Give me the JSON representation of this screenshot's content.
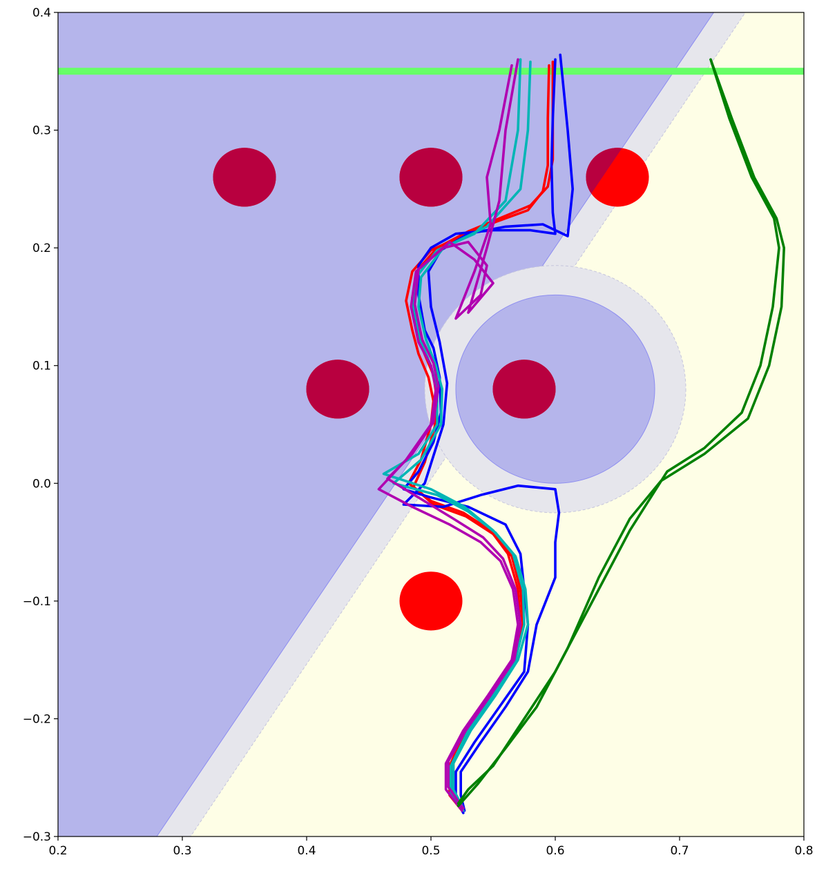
{
  "chart_data": {
    "type": "line",
    "title": "",
    "xlabel": "",
    "ylabel": "",
    "xlim": [
      0.2,
      0.8
    ],
    "ylim": [
      -0.3,
      0.4
    ],
    "grid": false,
    "x_ticks": [
      {
        "value": 0.2,
        "label": "0.2"
      },
      {
        "value": 0.3,
        "label": "0.3"
      },
      {
        "value": 0.4,
        "label": "0.4"
      },
      {
        "value": 0.5,
        "label": "0.5"
      },
      {
        "value": 0.6,
        "label": "0.6"
      },
      {
        "value": 0.7,
        "label": "0.7"
      },
      {
        "value": 0.8,
        "label": "0.8"
      }
    ],
    "y_ticks": [
      {
        "value": -0.3,
        "label": "−0.3"
      },
      {
        "value": -0.2,
        "label": "−0.2"
      },
      {
        "value": -0.1,
        "label": "−0.1"
      },
      {
        "value": 0.0,
        "label": "0.0"
      },
      {
        "value": 0.1,
        "label": "0.1"
      },
      {
        "value": 0.2,
        "label": "0.2"
      },
      {
        "value": 0.3,
        "label": "0.3"
      },
      {
        "value": 0.4,
        "label": "0.4"
      }
    ],
    "colors": {
      "background": "#fefee6",
      "unsafe_region": "#b5b5eb",
      "margin_band": "#e6e6ec",
      "goal_line": "#66ff66",
      "obstacle": "#ff0000",
      "obstacle_in_unsafe": "#b8003f"
    },
    "regions": {
      "half_plane_boundary": [
        [
          0.2794,
          -0.3
        ],
        [
          0.7275,
          0.4
        ]
      ],
      "margin_boundary": [
        [
          0.3066,
          -0.3
        ],
        [
          0.7529,
          0.4
        ]
      ],
      "disc": {
        "center": [
          0.6,
          0.08
        ],
        "radius": 0.08,
        "margin_radius": 0.105
      }
    },
    "goal_line_y": 0.35,
    "obstacles": [
      {
        "center": [
          0.35,
          0.26
        ],
        "rx": 0.0253,
        "ry": 0.025
      },
      {
        "center": [
          0.5,
          0.26
        ],
        "rx": 0.0253,
        "ry": 0.025
      },
      {
        "center": [
          0.65,
          0.26
        ],
        "rx": 0.0253,
        "ry": 0.025
      },
      {
        "center": [
          0.425,
          0.08
        ],
        "rx": 0.0253,
        "ry": 0.025
      },
      {
        "center": [
          0.575,
          0.08
        ],
        "rx": 0.0253,
        "ry": 0.025
      },
      {
        "center": [
          0.5,
          -0.1
        ],
        "rx": 0.0253,
        "ry": 0.025
      }
    ],
    "series": [
      {
        "color": "#ff0000",
        "points": [
          [
            0.525,
            -0.278
          ],
          [
            0.515,
            -0.265
          ],
          [
            0.515,
            -0.24
          ],
          [
            0.528,
            -0.21
          ],
          [
            0.548,
            -0.18
          ],
          [
            0.566,
            -0.15
          ],
          [
            0.572,
            -0.12
          ],
          [
            0.57,
            -0.09
          ],
          [
            0.562,
            -0.06
          ],
          [
            0.548,
            -0.04
          ],
          [
            0.526,
            -0.025
          ],
          [
            0.5,
            -0.015
          ],
          [
            0.482,
            0.0
          ],
          [
            0.492,
            0.02
          ],
          [
            0.5,
            0.05
          ],
          [
            0.502,
            0.07
          ],
          [
            0.498,
            0.09
          ],
          [
            0.49,
            0.11
          ],
          [
            0.485,
            0.13
          ],
          [
            0.48,
            0.155
          ],
          [
            0.485,
            0.18
          ],
          [
            0.5,
            0.198
          ],
          [
            0.525,
            0.21
          ],
          [
            0.552,
            0.222
          ],
          [
            0.578,
            0.232
          ],
          [
            0.59,
            0.248
          ],
          [
            0.594,
            0.27
          ],
          [
            0.594,
            0.31
          ],
          [
            0.595,
            0.355
          ]
        ]
      },
      {
        "color": "#ff0000",
        "points": [
          [
            0.526,
            -0.276
          ],
          [
            0.518,
            -0.262
          ],
          [
            0.518,
            -0.238
          ],
          [
            0.53,
            -0.21
          ],
          [
            0.55,
            -0.18
          ],
          [
            0.568,
            -0.15
          ],
          [
            0.574,
            -0.12
          ],
          [
            0.572,
            -0.09
          ],
          [
            0.565,
            -0.062
          ],
          [
            0.55,
            -0.043
          ],
          [
            0.528,
            -0.028
          ],
          [
            0.502,
            -0.018
          ],
          [
            0.486,
            -0.003
          ],
          [
            0.495,
            0.018
          ],
          [
            0.503,
            0.048
          ],
          [
            0.505,
            0.07
          ],
          [
            0.502,
            0.092
          ],
          [
            0.494,
            0.112
          ],
          [
            0.488,
            0.132
          ],
          [
            0.485,
            0.158
          ],
          [
            0.49,
            0.182
          ],
          [
            0.505,
            0.2
          ],
          [
            0.53,
            0.214
          ],
          [
            0.555,
            0.225
          ],
          [
            0.58,
            0.236
          ],
          [
            0.594,
            0.252
          ],
          [
            0.598,
            0.275
          ],
          [
            0.598,
            0.315
          ],
          [
            0.598,
            0.358
          ]
        ]
      },
      {
        "color": "#0000ff",
        "points": [
          [
            0.526,
            -0.28
          ],
          [
            0.52,
            -0.268
          ],
          [
            0.52,
            -0.245
          ],
          [
            0.535,
            -0.22
          ],
          [
            0.555,
            -0.19
          ],
          [
            0.575,
            -0.16
          ],
          [
            0.578,
            -0.12
          ],
          [
            0.575,
            -0.09
          ],
          [
            0.572,
            -0.06
          ],
          [
            0.56,
            -0.035
          ],
          [
            0.53,
            -0.02
          ],
          [
            0.5,
            -0.012
          ],
          [
            0.478,
            -0.005
          ],
          [
            0.49,
            0.01
          ],
          [
            0.502,
            0.035
          ],
          [
            0.508,
            0.06
          ],
          [
            0.507,
            0.09
          ],
          [
            0.502,
            0.115
          ],
          [
            0.495,
            0.13
          ],
          [
            0.49,
            0.16
          ],
          [
            0.49,
            0.185
          ],
          [
            0.5,
            0.2
          ],
          [
            0.52,
            0.212
          ],
          [
            0.55,
            0.215
          ],
          [
            0.58,
            0.215
          ],
          [
            0.6,
            0.212
          ],
          [
            0.598,
            0.23
          ],
          [
            0.597,
            0.27
          ],
          [
            0.598,
            0.31
          ],
          [
            0.6,
            0.36
          ]
        ]
      },
      {
        "color": "#0000ff",
        "points": [
          [
            0.527,
            -0.278
          ],
          [
            0.524,
            -0.265
          ],
          [
            0.524,
            -0.245
          ],
          [
            0.54,
            -0.22
          ],
          [
            0.56,
            -0.19
          ],
          [
            0.578,
            -0.16
          ],
          [
            0.585,
            -0.12
          ],
          [
            0.6,
            -0.08
          ],
          [
            0.6,
            -0.05
          ],
          [
            0.603,
            -0.025
          ],
          [
            0.6,
            -0.005
          ],
          [
            0.57,
            -0.002
          ],
          [
            0.54,
            -0.01
          ],
          [
            0.51,
            -0.02
          ],
          [
            0.478,
            -0.018
          ],
          [
            0.495,
            0.0
          ],
          [
            0.51,
            0.05
          ],
          [
            0.513,
            0.085
          ],
          [
            0.507,
            0.12
          ],
          [
            0.5,
            0.15
          ],
          [
            0.498,
            0.18
          ],
          [
            0.508,
            0.198
          ],
          [
            0.53,
            0.212
          ],
          [
            0.56,
            0.218
          ],
          [
            0.59,
            0.22
          ],
          [
            0.61,
            0.21
          ],
          [
            0.614,
            0.25
          ],
          [
            0.61,
            0.3
          ],
          [
            0.604,
            0.364
          ]
        ]
      },
      {
        "color": "#00b5b5",
        "points": [
          [
            0.526,
            -0.278
          ],
          [
            0.516,
            -0.262
          ],
          [
            0.516,
            -0.24
          ],
          [
            0.53,
            -0.21
          ],
          [
            0.55,
            -0.18
          ],
          [
            0.568,
            -0.15
          ],
          [
            0.575,
            -0.12
          ],
          [
            0.574,
            -0.09
          ],
          [
            0.566,
            -0.06
          ],
          [
            0.55,
            -0.04
          ],
          [
            0.527,
            -0.02
          ],
          [
            0.5,
            -0.005
          ],
          [
            0.462,
            0.008
          ],
          [
            0.49,
            0.025
          ],
          [
            0.505,
            0.05
          ],
          [
            0.505,
            0.08
          ],
          [
            0.5,
            0.1
          ],
          [
            0.492,
            0.12
          ],
          [
            0.486,
            0.15
          ],
          [
            0.488,
            0.175
          ],
          [
            0.505,
            0.198
          ],
          [
            0.535,
            0.212
          ],
          [
            0.56,
            0.24
          ],
          [
            0.57,
            0.3
          ],
          [
            0.572,
            0.36
          ]
        ]
      },
      {
        "color": "#00b5b5",
        "points": [
          [
            0.526,
            -0.276
          ],
          [
            0.518,
            -0.26
          ],
          [
            0.518,
            -0.238
          ],
          [
            0.532,
            -0.21
          ],
          [
            0.552,
            -0.18
          ],
          [
            0.57,
            -0.15
          ],
          [
            0.578,
            -0.12
          ],
          [
            0.576,
            -0.09
          ],
          [
            0.568,
            -0.062
          ],
          [
            0.552,
            -0.042
          ],
          [
            0.53,
            -0.024
          ],
          [
            0.505,
            -0.01
          ],
          [
            0.47,
            0.0
          ],
          [
            0.492,
            0.02
          ],
          [
            0.508,
            0.05
          ],
          [
            0.509,
            0.08
          ],
          [
            0.504,
            0.1
          ],
          [
            0.496,
            0.122
          ],
          [
            0.49,
            0.15
          ],
          [
            0.492,
            0.175
          ],
          [
            0.51,
            0.2
          ],
          [
            0.545,
            0.218
          ],
          [
            0.572,
            0.25
          ],
          [
            0.578,
            0.3
          ],
          [
            0.58,
            0.358
          ]
        ]
      },
      {
        "color": "#b000b0",
        "points": [
          [
            0.525,
            -0.278
          ],
          [
            0.512,
            -0.26
          ],
          [
            0.512,
            -0.238
          ],
          [
            0.526,
            -0.21
          ],
          [
            0.546,
            -0.18
          ],
          [
            0.565,
            -0.15
          ],
          [
            0.57,
            -0.12
          ],
          [
            0.566,
            -0.09
          ],
          [
            0.556,
            -0.066
          ],
          [
            0.54,
            -0.05
          ],
          [
            0.515,
            -0.035
          ],
          [
            0.485,
            -0.02
          ],
          [
            0.458,
            -0.005
          ],
          [
            0.48,
            0.02
          ],
          [
            0.5,
            0.05
          ],
          [
            0.504,
            0.08
          ],
          [
            0.5,
            0.1
          ],
          [
            0.49,
            0.12
          ],
          [
            0.484,
            0.15
          ],
          [
            0.488,
            0.18
          ],
          [
            0.51,
            0.2
          ],
          [
            0.53,
            0.205
          ],
          [
            0.545,
            0.185
          ],
          [
            0.54,
            0.16
          ],
          [
            0.52,
            0.14
          ],
          [
            0.535,
            0.18
          ],
          [
            0.548,
            0.22
          ],
          [
            0.545,
            0.26
          ],
          [
            0.555,
            0.3
          ],
          [
            0.565,
            0.355
          ]
        ]
      },
      {
        "color": "#b000b0",
        "points": [
          [
            0.526,
            -0.276
          ],
          [
            0.514,
            -0.258
          ],
          [
            0.514,
            -0.236
          ],
          [
            0.528,
            -0.21
          ],
          [
            0.548,
            -0.18
          ],
          [
            0.567,
            -0.15
          ],
          [
            0.572,
            -0.12
          ],
          [
            0.568,
            -0.09
          ],
          [
            0.558,
            -0.064
          ],
          [
            0.542,
            -0.046
          ],
          [
            0.518,
            -0.03
          ],
          [
            0.49,
            -0.012
          ],
          [
            0.465,
            0.004
          ],
          [
            0.485,
            0.025
          ],
          [
            0.502,
            0.052
          ],
          [
            0.506,
            0.082
          ],
          [
            0.502,
            0.102
          ],
          [
            0.493,
            0.122
          ],
          [
            0.487,
            0.152
          ],
          [
            0.49,
            0.182
          ],
          [
            0.515,
            0.205
          ],
          [
            0.535,
            0.19
          ],
          [
            0.55,
            0.17
          ],
          [
            0.53,
            0.145
          ],
          [
            0.545,
            0.2
          ],
          [
            0.555,
            0.24
          ],
          [
            0.56,
            0.3
          ],
          [
            0.57,
            0.36
          ]
        ]
      },
      {
        "color": "#008000",
        "points": [
          [
            0.522,
            -0.272
          ],
          [
            0.53,
            -0.26
          ],
          [
            0.55,
            -0.24
          ],
          [
            0.575,
            -0.2
          ],
          [
            0.6,
            -0.16
          ],
          [
            0.63,
            -0.1
          ],
          [
            0.66,
            -0.04
          ],
          [
            0.69,
            0.01
          ],
          [
            0.72,
            0.03
          ],
          [
            0.75,
            0.06
          ],
          [
            0.765,
            0.1
          ],
          [
            0.775,
            0.15
          ],
          [
            0.78,
            0.2
          ],
          [
            0.776,
            0.225
          ],
          [
            0.758,
            0.26
          ],
          [
            0.74,
            0.31
          ],
          [
            0.725,
            0.36
          ]
        ]
      },
      {
        "color": "#008000",
        "points": [
          [
            0.522,
            -0.274
          ],
          [
            0.538,
            -0.255
          ],
          [
            0.56,
            -0.225
          ],
          [
            0.585,
            -0.19
          ],
          [
            0.61,
            -0.14
          ],
          [
            0.635,
            -0.08
          ],
          [
            0.66,
            -0.03
          ],
          [
            0.685,
            0.002
          ],
          [
            0.72,
            0.025
          ],
          [
            0.755,
            0.055
          ],
          [
            0.772,
            0.1
          ],
          [
            0.782,
            0.15
          ],
          [
            0.784,
            0.2
          ],
          [
            0.778,
            0.225
          ],
          [
            0.76,
            0.26
          ],
          [
            0.742,
            0.31
          ],
          [
            0.725,
            0.36
          ]
        ]
      }
    ]
  }
}
